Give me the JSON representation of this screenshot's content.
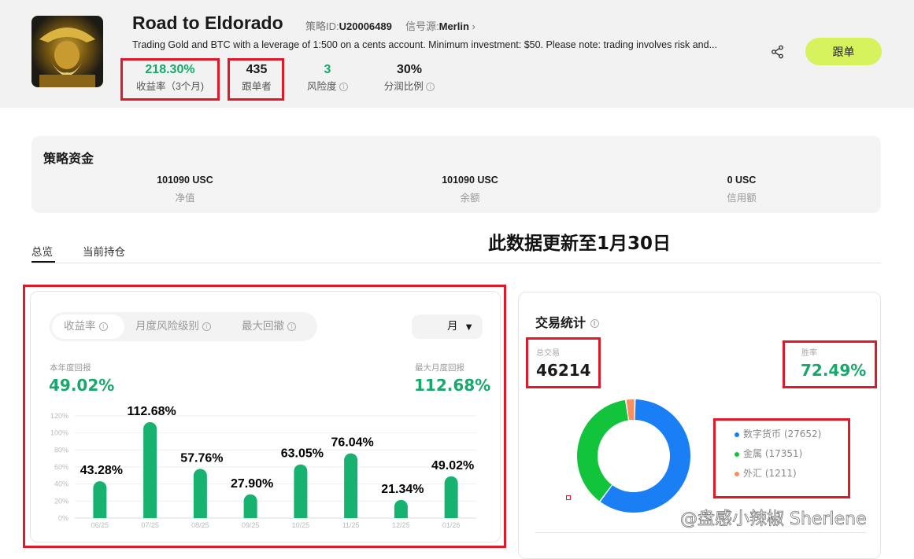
{
  "header": {
    "title": "Road to Eldorado",
    "strategy_id_label": "策略ID:",
    "strategy_id": "U20006489",
    "signal_label": "信号源:",
    "signal_source": "Merlin",
    "description": "Trading Gold and BTC with a leverage of 1:500 on a cents account. Minimum investment: $50. Please note: trading involves risk and...",
    "stats": [
      {
        "value": "218.30%",
        "label": "收益率（3个月)"
      },
      {
        "value": "435",
        "label": "跟单者"
      },
      {
        "value": "3",
        "label": "风险度"
      },
      {
        "value": "30%",
        "label": "分润比例"
      }
    ],
    "follow_label": "跟单"
  },
  "funds": {
    "title": "策略资金",
    "items": [
      {
        "value": "101090 USC",
        "label": "净值"
      },
      {
        "value": "101090 USC",
        "label": "余额"
      },
      {
        "value": "0 USC",
        "label": "信用额"
      }
    ]
  },
  "tabs": [
    {
      "label": "总览",
      "active": true
    },
    {
      "label": "当前持仓",
      "active": false
    }
  ],
  "annotation": "此数据更新至1月30日",
  "returns": {
    "segments": [
      "收益率",
      "月度风险级别",
      "最大回撤"
    ],
    "period": "月",
    "ytd_label": "本年度回报",
    "ytd_value": "49.02%",
    "max_label": "最大月度回报",
    "max_value": "112.68%"
  },
  "chart_data": {
    "type": "bar",
    "categories": [
      "06/25",
      "07/25",
      "08/25",
      "09/25",
      "10/25",
      "11/25",
      "12/25",
      "01/26"
    ],
    "values": [
      43.28,
      112.68,
      57.76,
      27.9,
      63.05,
      76.04,
      21.34,
      49.02
    ],
    "data_labels": [
      "43.28%",
      "112.68%",
      "57.76%",
      "27.90%",
      "63.05%",
      "76.04%",
      "21.34%",
      "49.02%"
    ],
    "yticks": [
      "0%",
      "20%",
      "40%",
      "60%",
      "80%",
      "100%",
      "120%"
    ],
    "ylim": [
      0,
      120
    ],
    "grid": true,
    "color": "#17b26f"
  },
  "trade_stats": {
    "title": "交易统计",
    "total_label": "总交易",
    "total_value": "46214",
    "winrate_label": "胜率",
    "winrate_value": "72.49%",
    "breakdown": [
      {
        "label": "数字货币 (27652)",
        "value": 27652,
        "color": "#1a7ff5"
      },
      {
        "label": "金属 (17351)",
        "value": 17351,
        "color": "#11c43c"
      },
      {
        "label": "外汇 (1211)",
        "value": 1211,
        "color": "#f98e62"
      }
    ]
  },
  "watermark": "@盘感小辣椒 Sherlene"
}
